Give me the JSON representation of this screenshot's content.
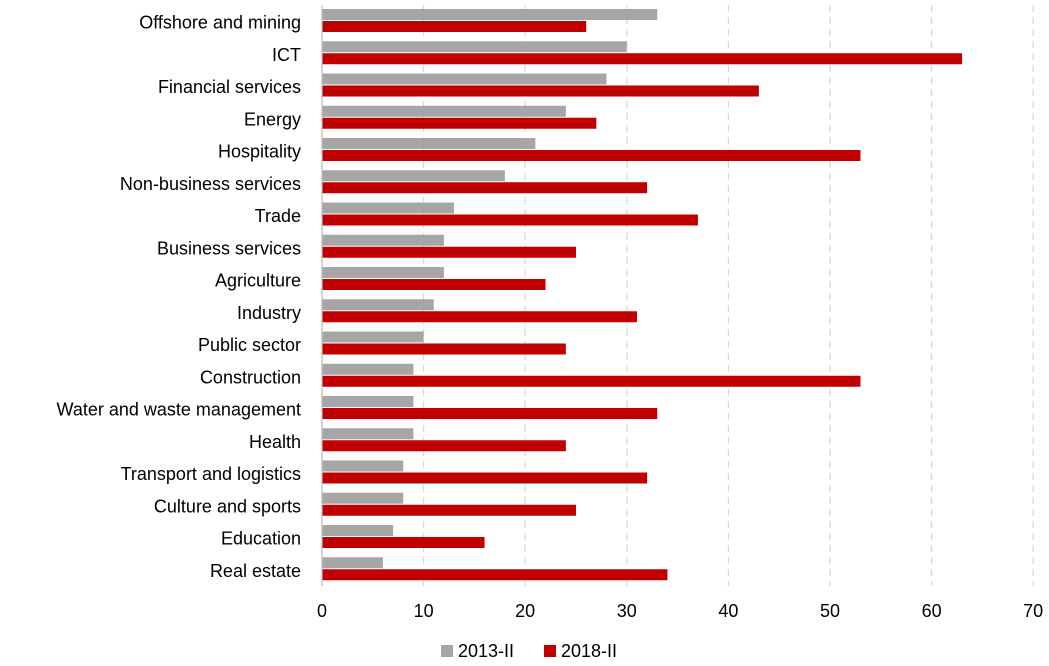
{
  "chart_data": {
    "type": "bar",
    "orientation": "horizontal",
    "categories": [
      "Offshore and mining",
      "ICT",
      "Financial services",
      "Energy",
      "Hospitality",
      "Non-business services",
      "Trade",
      "Business services",
      "Agriculture",
      "Industry",
      "Public sector",
      "Construction",
      "Water and waste management",
      "Health",
      "Transport and logistics",
      "Culture and sports",
      "Education",
      "Real estate"
    ],
    "series": [
      {
        "name": "2013-II",
        "color": "#a6a6a6",
        "values": [
          33,
          30,
          28,
          24,
          21,
          18,
          13,
          12,
          12,
          11,
          10,
          9,
          9,
          9,
          8,
          8,
          7,
          6
        ]
      },
      {
        "name": "2018-II",
        "color": "#c00000",
        "values": [
          26,
          63,
          43,
          27,
          53,
          32,
          37,
          25,
          22,
          31,
          24,
          53,
          33,
          24,
          32,
          25,
          16,
          34
        ]
      }
    ],
    "xlim": [
      0,
      70
    ],
    "xticks": [
      "0",
      "10",
      "20",
      "30",
      "40",
      "50",
      "60",
      "70"
    ],
    "title": "",
    "xlabel": "",
    "ylabel": "",
    "grid": "vertical dashed",
    "legend_position": "bottom"
  }
}
